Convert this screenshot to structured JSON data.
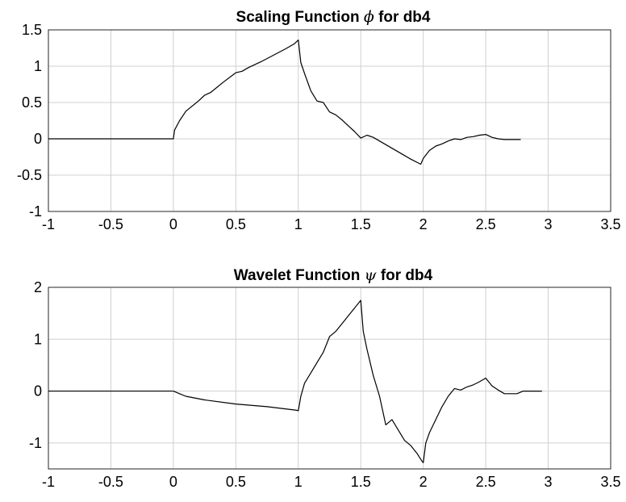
{
  "chart_data": [
    {
      "type": "line",
      "title_prefix": "Scaling Function ",
      "title_symbol": "ϕ",
      "title_suffix": " for db4",
      "xlim": [
        -1,
        3.5
      ],
      "ylim": [
        -1,
        1.5
      ],
      "xticks": [
        "-1",
        "-0.5",
        "0",
        "0.5",
        "1",
        "1.5",
        "2",
        "2.5",
        "3",
        "3.5"
      ],
      "yticks": [
        "1.5",
        "1",
        "0.5",
        "0",
        "-0.5",
        "-1"
      ],
      "grid": true,
      "series": [
        {
          "x": [
            -1,
            0,
            0.01,
            0.05,
            0.1,
            0.2,
            0.25,
            0.3,
            0.4,
            0.5,
            0.55,
            0.6,
            0.7,
            0.8,
            0.9,
            0.97,
            1,
            1.02,
            1.05,
            1.1,
            1.15,
            1.2,
            1.25,
            1.3,
            1.35,
            1.4,
            1.45,
            1.5,
            1.55,
            1.6,
            1.7,
            1.8,
            1.9,
            1.98,
            2,
            2.05,
            2.1,
            2.15,
            2.2,
            2.25,
            2.3,
            2.35,
            2.4,
            2.45,
            2.5,
            2.55,
            2.6,
            2.65,
            2.7,
            2.75,
            2.78
          ],
          "y": [
            0,
            0,
            0.12,
            0.25,
            0.38,
            0.52,
            0.6,
            0.64,
            0.78,
            0.91,
            0.93,
            0.98,
            1.06,
            1.15,
            1.24,
            1.31,
            1.36,
            1.05,
            0.9,
            0.66,
            0.52,
            0.5,
            0.37,
            0.33,
            0.26,
            0.18,
            0.1,
            0.01,
            0.05,
            0.02,
            -0.08,
            -0.18,
            -0.28,
            -0.35,
            -0.27,
            -0.16,
            -0.1,
            -0.07,
            -0.03,
            0.0,
            -0.01,
            0.02,
            0.03,
            0.05,
            0.06,
            0.02,
            0.0,
            -0.01,
            -0.01,
            -0.01,
            -0.01
          ]
        }
      ]
    },
    {
      "type": "line",
      "title_prefix": "Wavelet Function ",
      "title_symbol": "ψ",
      "title_suffix": " for db4",
      "xlim": [
        -1,
        3.5
      ],
      "ylim": [
        -1.5,
        2
      ],
      "xticks": [
        "-1",
        "-0.5",
        "0",
        "0.5",
        "1",
        "1.5",
        "2",
        "2.5",
        "3",
        "3.5"
      ],
      "yticks": [
        "2",
        "1",
        "0",
        "-1"
      ],
      "grid": true,
      "series": [
        {
          "x": [
            0,
            0.05,
            0.1,
            0.25,
            0.5,
            0.75,
            0.99,
            1,
            1.02,
            1.05,
            1.1,
            1.15,
            1.2,
            1.25,
            1.3,
            1.35,
            1.4,
            1.45,
            1.5,
            1.52,
            1.55,
            1.6,
            1.65,
            1.7,
            1.75,
            1.8,
            1.85,
            1.9,
            1.95,
            1.99,
            2,
            2.02,
            2.05,
            2.1,
            2.15,
            2.2,
            2.25,
            2.3,
            2.35,
            2.4,
            2.45,
            2.5,
            2.55,
            2.6,
            2.65,
            2.7,
            2.75,
            2.8,
            2.85,
            2.9,
            2.95
          ],
          "y": [
            0,
            -0.05,
            -0.1,
            -0.17,
            -0.25,
            -0.3,
            -0.37,
            -0.38,
            -0.1,
            0.15,
            0.35,
            0.55,
            0.75,
            1.05,
            1.15,
            1.3,
            1.45,
            1.6,
            1.75,
            1.15,
            0.8,
            0.3,
            -0.1,
            -0.65,
            -0.55,
            -0.75,
            -0.95,
            -1.05,
            -1.2,
            -1.35,
            -1.38,
            -1.0,
            -0.8,
            -0.55,
            -0.3,
            -0.1,
            0.05,
            0.02,
            0.08,
            0.12,
            0.18,
            0.25,
            0.1,
            0.02,
            -0.05,
            -0.05,
            -0.05,
            0.0,
            0.0,
            0.0,
            0.0
          ]
        }
      ]
    }
  ]
}
